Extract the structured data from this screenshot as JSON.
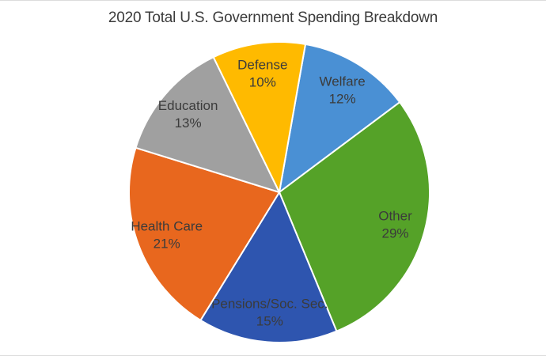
{
  "chart_data": {
    "type": "pie",
    "title": "2020 Total U.S. Government Spending Breakdown",
    "slices": [
      {
        "label": "Welfare",
        "value": 12,
        "percent_label": "12%",
        "color": "#4A90D4"
      },
      {
        "label": "Other",
        "value": 29,
        "percent_label": "29%",
        "color": "#55A228"
      },
      {
        "label": "Pensions/Soc. Sec.",
        "value": 15,
        "percent_label": "15%",
        "color": "#2E55AF"
      },
      {
        "label": "Health Care",
        "value": 21,
        "percent_label": "21%",
        "color": "#E8671E"
      },
      {
        "label": "Education",
        "value": 13,
        "percent_label": "13%",
        "color": "#A0A0A0"
      },
      {
        "label": "Defense",
        "value": 10,
        "percent_label": "10%",
        "color": "#FFBA00"
      }
    ],
    "start_angle_deg": 10,
    "direction": "clockwise",
    "legend": "none",
    "labels": "inside",
    "slice_border_color": "#FFFFFF",
    "text_color": "#3B3B3B",
    "background": "#FFFFFF"
  }
}
